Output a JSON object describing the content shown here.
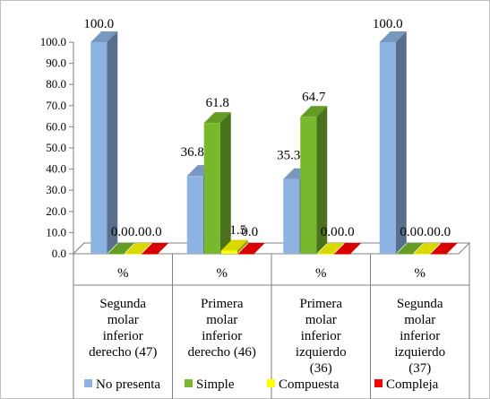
{
  "chart_data": {
    "type": "bar",
    "ylim": [
      0,
      100
    ],
    "yticks": [
      "0.0",
      "10.0",
      "20.0",
      "30.0",
      "40.0",
      "50.0",
      "60.0",
      "70.0",
      "80.0",
      "90.0",
      "100.0"
    ],
    "grid": false,
    "legend_position": "bottom",
    "unit_row": [
      "%",
      "%",
      "%",
      "%"
    ],
    "categories": [
      [
        "Segunda",
        "molar",
        "inferior",
        "derecho (47)"
      ],
      [
        "Primera",
        "molar",
        "inferior",
        "derecho (46)"
      ],
      [
        "Primera",
        "molar",
        "inferior",
        "izquierdo",
        "(36)"
      ],
      [
        "Segunda",
        "molar",
        "inferior",
        "izquierdo",
        "(37)"
      ]
    ],
    "series": [
      {
        "name": "No presenta",
        "color": "#8db3e2",
        "values": [
          100.0,
          36.8,
          35.3,
          100.0
        ],
        "labels": [
          "100.0",
          "36.8",
          "35.3",
          "100.0"
        ]
      },
      {
        "name": "Simple",
        "color": "#77b82c",
        "values": [
          0.0,
          61.8,
          64.7,
          0.0
        ],
        "labels": [
          "0.0",
          "61.8",
          "64.7",
          "0.0"
        ]
      },
      {
        "name": "Compuesta",
        "color": "#ffff00",
        "values": [
          0.0,
          1.5,
          0.0,
          0.0
        ],
        "labels": [
          "0.0",
          "1.5",
          "0.0",
          "0.0"
        ]
      },
      {
        "name": "Compleja",
        "color": "#ff0000",
        "values": [
          0.0,
          0.0,
          0.0,
          0.0
        ],
        "labels": [
          "0.0",
          "0.0",
          "0.0",
          "0.0"
        ]
      }
    ]
  }
}
